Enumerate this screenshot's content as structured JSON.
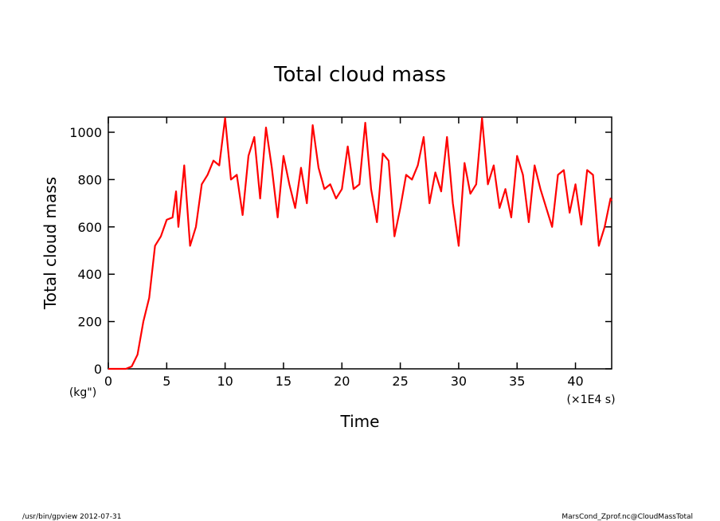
{
  "chart_data": {
    "type": "line",
    "title": "Total cloud mass",
    "y_label": "Total cloud mass",
    "y_unit": "(kg\")",
    "x_label": "Time",
    "x_unit": "(×1E4 s)",
    "footer_left": "/usr/bin/gpview   2012-07-31",
    "footer_right": "MarsCond_Zprof.nc@CloudMassTotal",
    "xlim": [
      0,
      43.1
    ],
    "ylim": [
      0,
      1064
    ],
    "xticks": [
      0,
      5,
      10,
      15,
      20,
      25,
      30,
      35,
      40
    ],
    "yticks": [
      0,
      200,
      400,
      600,
      800,
      1000
    ],
    "x": [
      0,
      0.5,
      1,
      1.5,
      2,
      2.5,
      3,
      3.5,
      4,
      4.5,
      5,
      5.5,
      5.8,
      6,
      6.5,
      7,
      7.5,
      8,
      8.5,
      9,
      9.5,
      10,
      10.5,
      11,
      11.5,
      12,
      12.5,
      13,
      13.5,
      14,
      14.5,
      15,
      15.5,
      16,
      16.5,
      17,
      17.5,
      18,
      18.5,
      19,
      19.5,
      20,
      20.5,
      21,
      21.5,
      22,
      22.5,
      23,
      23.5,
      24,
      24.5,
      25,
      25.5,
      26,
      26.5,
      27,
      27.5,
      28,
      28.5,
      29,
      29.5,
      30,
      30.5,
      31,
      31.5,
      32,
      32.5,
      33,
      33.5,
      34,
      34.5,
      35,
      35.5,
      36,
      36.5,
      37,
      37.5,
      38,
      38.5,
      39,
      39.5,
      40,
      40.5,
      41,
      41.5,
      42,
      42.5,
      43,
      43.1
    ],
    "series": [
      {
        "name": "Total cloud mass",
        "color": "#ff0000",
        "values": [
          0,
          0,
          0,
          0,
          10,
          60,
          200,
          300,
          520,
          560,
          630,
          640,
          750,
          600,
          860,
          520,
          600,
          780,
          820,
          880,
          860,
          1060,
          800,
          820,
          650,
          900,
          980,
          720,
          1020,
          850,
          640,
          900,
          780,
          680,
          850,
          700,
          1030,
          850,
          760,
          780,
          720,
          760,
          940,
          760,
          780,
          1040,
          760,
          620,
          910,
          880,
          560,
          680,
          820,
          800,
          860,
          980,
          700,
          830,
          750,
          980,
          700,
          520,
          870,
          740,
          780,
          1060,
          780,
          860,
          680,
          760,
          640,
          900,
          820,
          620,
          860,
          760,
          680,
          600,
          820,
          840,
          660,
          780,
          610,
          840,
          820,
          520,
          600,
          720,
          710
        ]
      }
    ]
  }
}
